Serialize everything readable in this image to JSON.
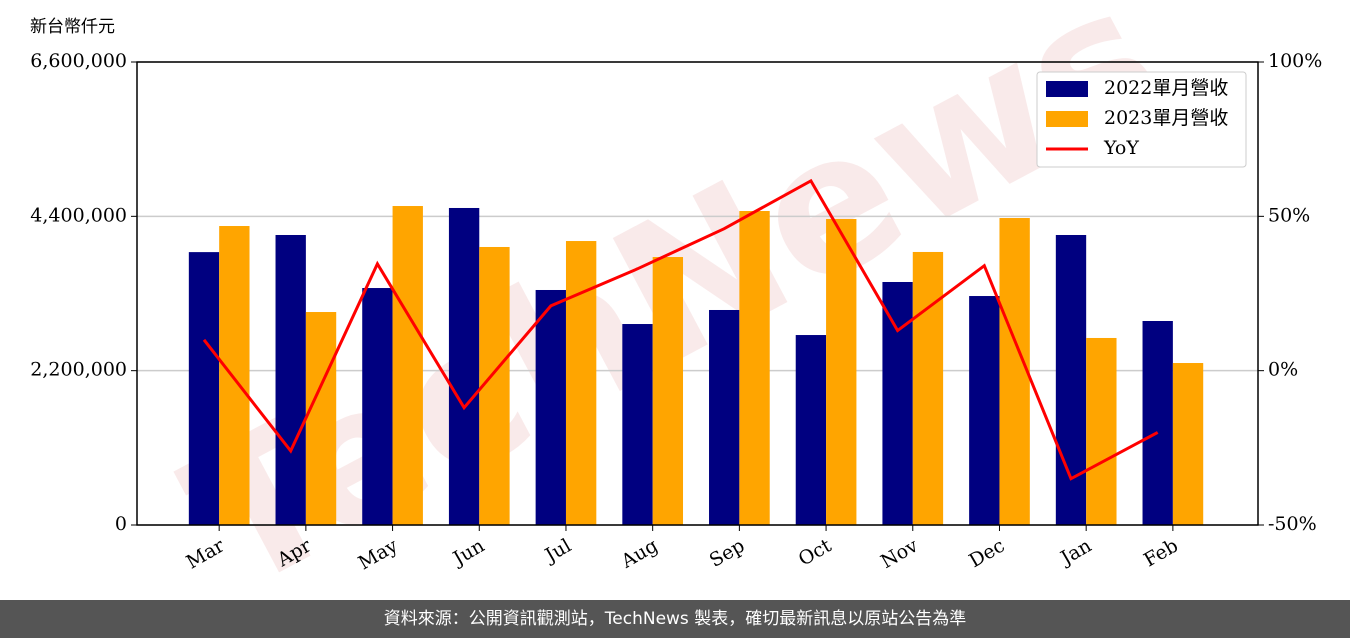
{
  "chart_data": {
    "type": "bar",
    "y_label": "新台幣仟元",
    "watermark": "TechNews",
    "categories": [
      "Mar",
      "Apr",
      "May",
      "Jun",
      "Jul",
      "Aug",
      "Sep",
      "Oct",
      "Nov",
      "Dec",
      "Jan",
      "Feb"
    ],
    "series": [
      {
        "name": "2022單月營收",
        "color": "#000080",
        "values": [
          3890000,
          4134000,
          3378000,
          4519000,
          3350000,
          2865000,
          3065000,
          2708000,
          3464000,
          3264000,
          4134000,
          2908000
        ]
      },
      {
        "name": "2023單月營收",
        "color": "#ffa500",
        "values": [
          4262000,
          3036000,
          4547000,
          3963000,
          4048000,
          3820000,
          4476000,
          4362000,
          3892000,
          4376000,
          2666000,
          2309000
        ]
      },
      {
        "name": "YoY",
        "type": "line",
        "axis": "y2",
        "color": "#ff0000",
        "values": [
          10,
          -26,
          34.6,
          -12,
          21,
          33,
          46,
          61.5,
          13,
          34,
          -35,
          -20
        ]
      }
    ],
    "ylim": [
      0,
      6600000
    ],
    "yticks": [
      0,
      {
        "value": 2200000,
        "label": "2,200,000"
      },
      {
        "value": 4400000,
        "label": "4,400,000"
      },
      {
        "value": 6600000,
        "label": "6,600,000"
      }
    ],
    "y2lim": [
      -50,
      100
    ],
    "y2ticks": [
      {
        "value": -50,
        "label": "-50%"
      },
      {
        "value": 0,
        "label": "0%"
      },
      {
        "value": 50,
        "label": "50%"
      },
      {
        "value": 100,
        "label": "100%"
      }
    ],
    "grid": true,
    "legend": "upper right"
  },
  "footer": "資料來源：公開資訊觀測站，TechNews 製表，確切最新訊息以原站公告為準"
}
